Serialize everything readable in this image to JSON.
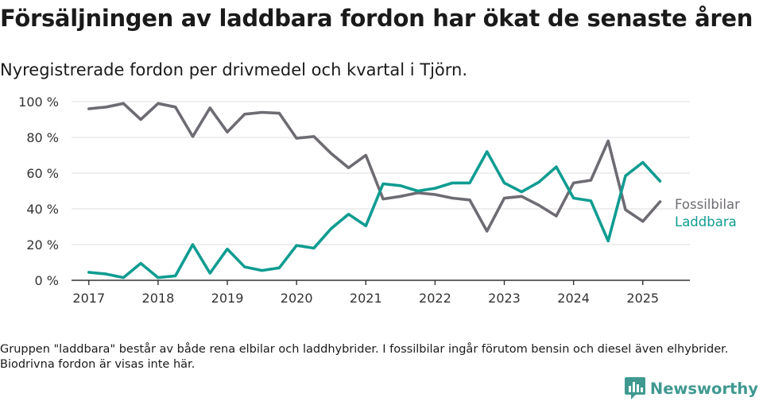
{
  "header": {
    "title": "Försäljningen av laddbara fordon har ökat de senaste åren",
    "subtitle": "Nyregistrerade fordon per drivmedel och kvartal i Tjörn."
  },
  "footnote": "Gruppen \"laddbara\" består av både rena elbilar och laddhybrider. I fossilbilar ingår förutom bensin och diesel även elhybrider. Biodrivna fordon är visas inte här.",
  "brand": {
    "name": "Newsworthy",
    "color": "#3f9990"
  },
  "chart_data": {
    "type": "line",
    "ylim": [
      0,
      100
    ],
    "yticks": [
      0,
      20,
      40,
      60,
      80,
      100
    ],
    "ytick_labels": [
      "0 %",
      "20 %",
      "40 %",
      "60 %",
      "80 %",
      "100 %"
    ],
    "xlim": [
      2016.75,
      2025.68
    ],
    "xticks": [
      2017,
      2018,
      2019,
      2020,
      2021,
      2022,
      2023,
      2024,
      2025
    ],
    "xtick_labels": [
      "2017",
      "2018",
      "2019",
      "2020",
      "2021",
      "2022",
      "2023",
      "2024",
      "2025"
    ],
    "grid": "horizontal",
    "legend": "inline-right",
    "x": [
      2017.0,
      2017.25,
      2017.5,
      2017.75,
      2018.0,
      2018.25,
      2018.5,
      2018.75,
      2019.0,
      2019.25,
      2019.5,
      2019.75,
      2020.0,
      2020.25,
      2020.5,
      2020.75,
      2021.0,
      2021.25,
      2021.5,
      2021.75,
      2022.0,
      2022.25,
      2022.5,
      2022.75,
      2023.0,
      2023.25,
      2023.5,
      2023.75,
      2024.0,
      2024.25,
      2024.5,
      2024.75,
      2025.0,
      2025.25
    ],
    "series": [
      {
        "name": "Fossilbilar",
        "color": "#6e6b73",
        "values": [
          96,
          97,
          99,
          90,
          99,
          97,
          80.5,
          96.5,
          83,
          93,
          94,
          93.5,
          79.5,
          80.5,
          71,
          63,
          70,
          45.5,
          47,
          49,
          48,
          46,
          45,
          27.5,
          46,
          47,
          42,
          36,
          54.5,
          56,
          78,
          39.5,
          33,
          44
        ]
      },
      {
        "name": "Laddbara",
        "color": "#0f9c91",
        "values": [
          4.5,
          3.5,
          1.5,
          9.5,
          1.5,
          2.5,
          20,
          4,
          17.5,
          7.5,
          5.5,
          7,
          19.5,
          18,
          29,
          37,
          30.5,
          54,
          53,
          50,
          51.5,
          54.5,
          54.5,
          72,
          54.5,
          49.5,
          55,
          63.5,
          46,
          44.5,
          22,
          58.5,
          66,
          55.5
        ]
      }
    ]
  }
}
